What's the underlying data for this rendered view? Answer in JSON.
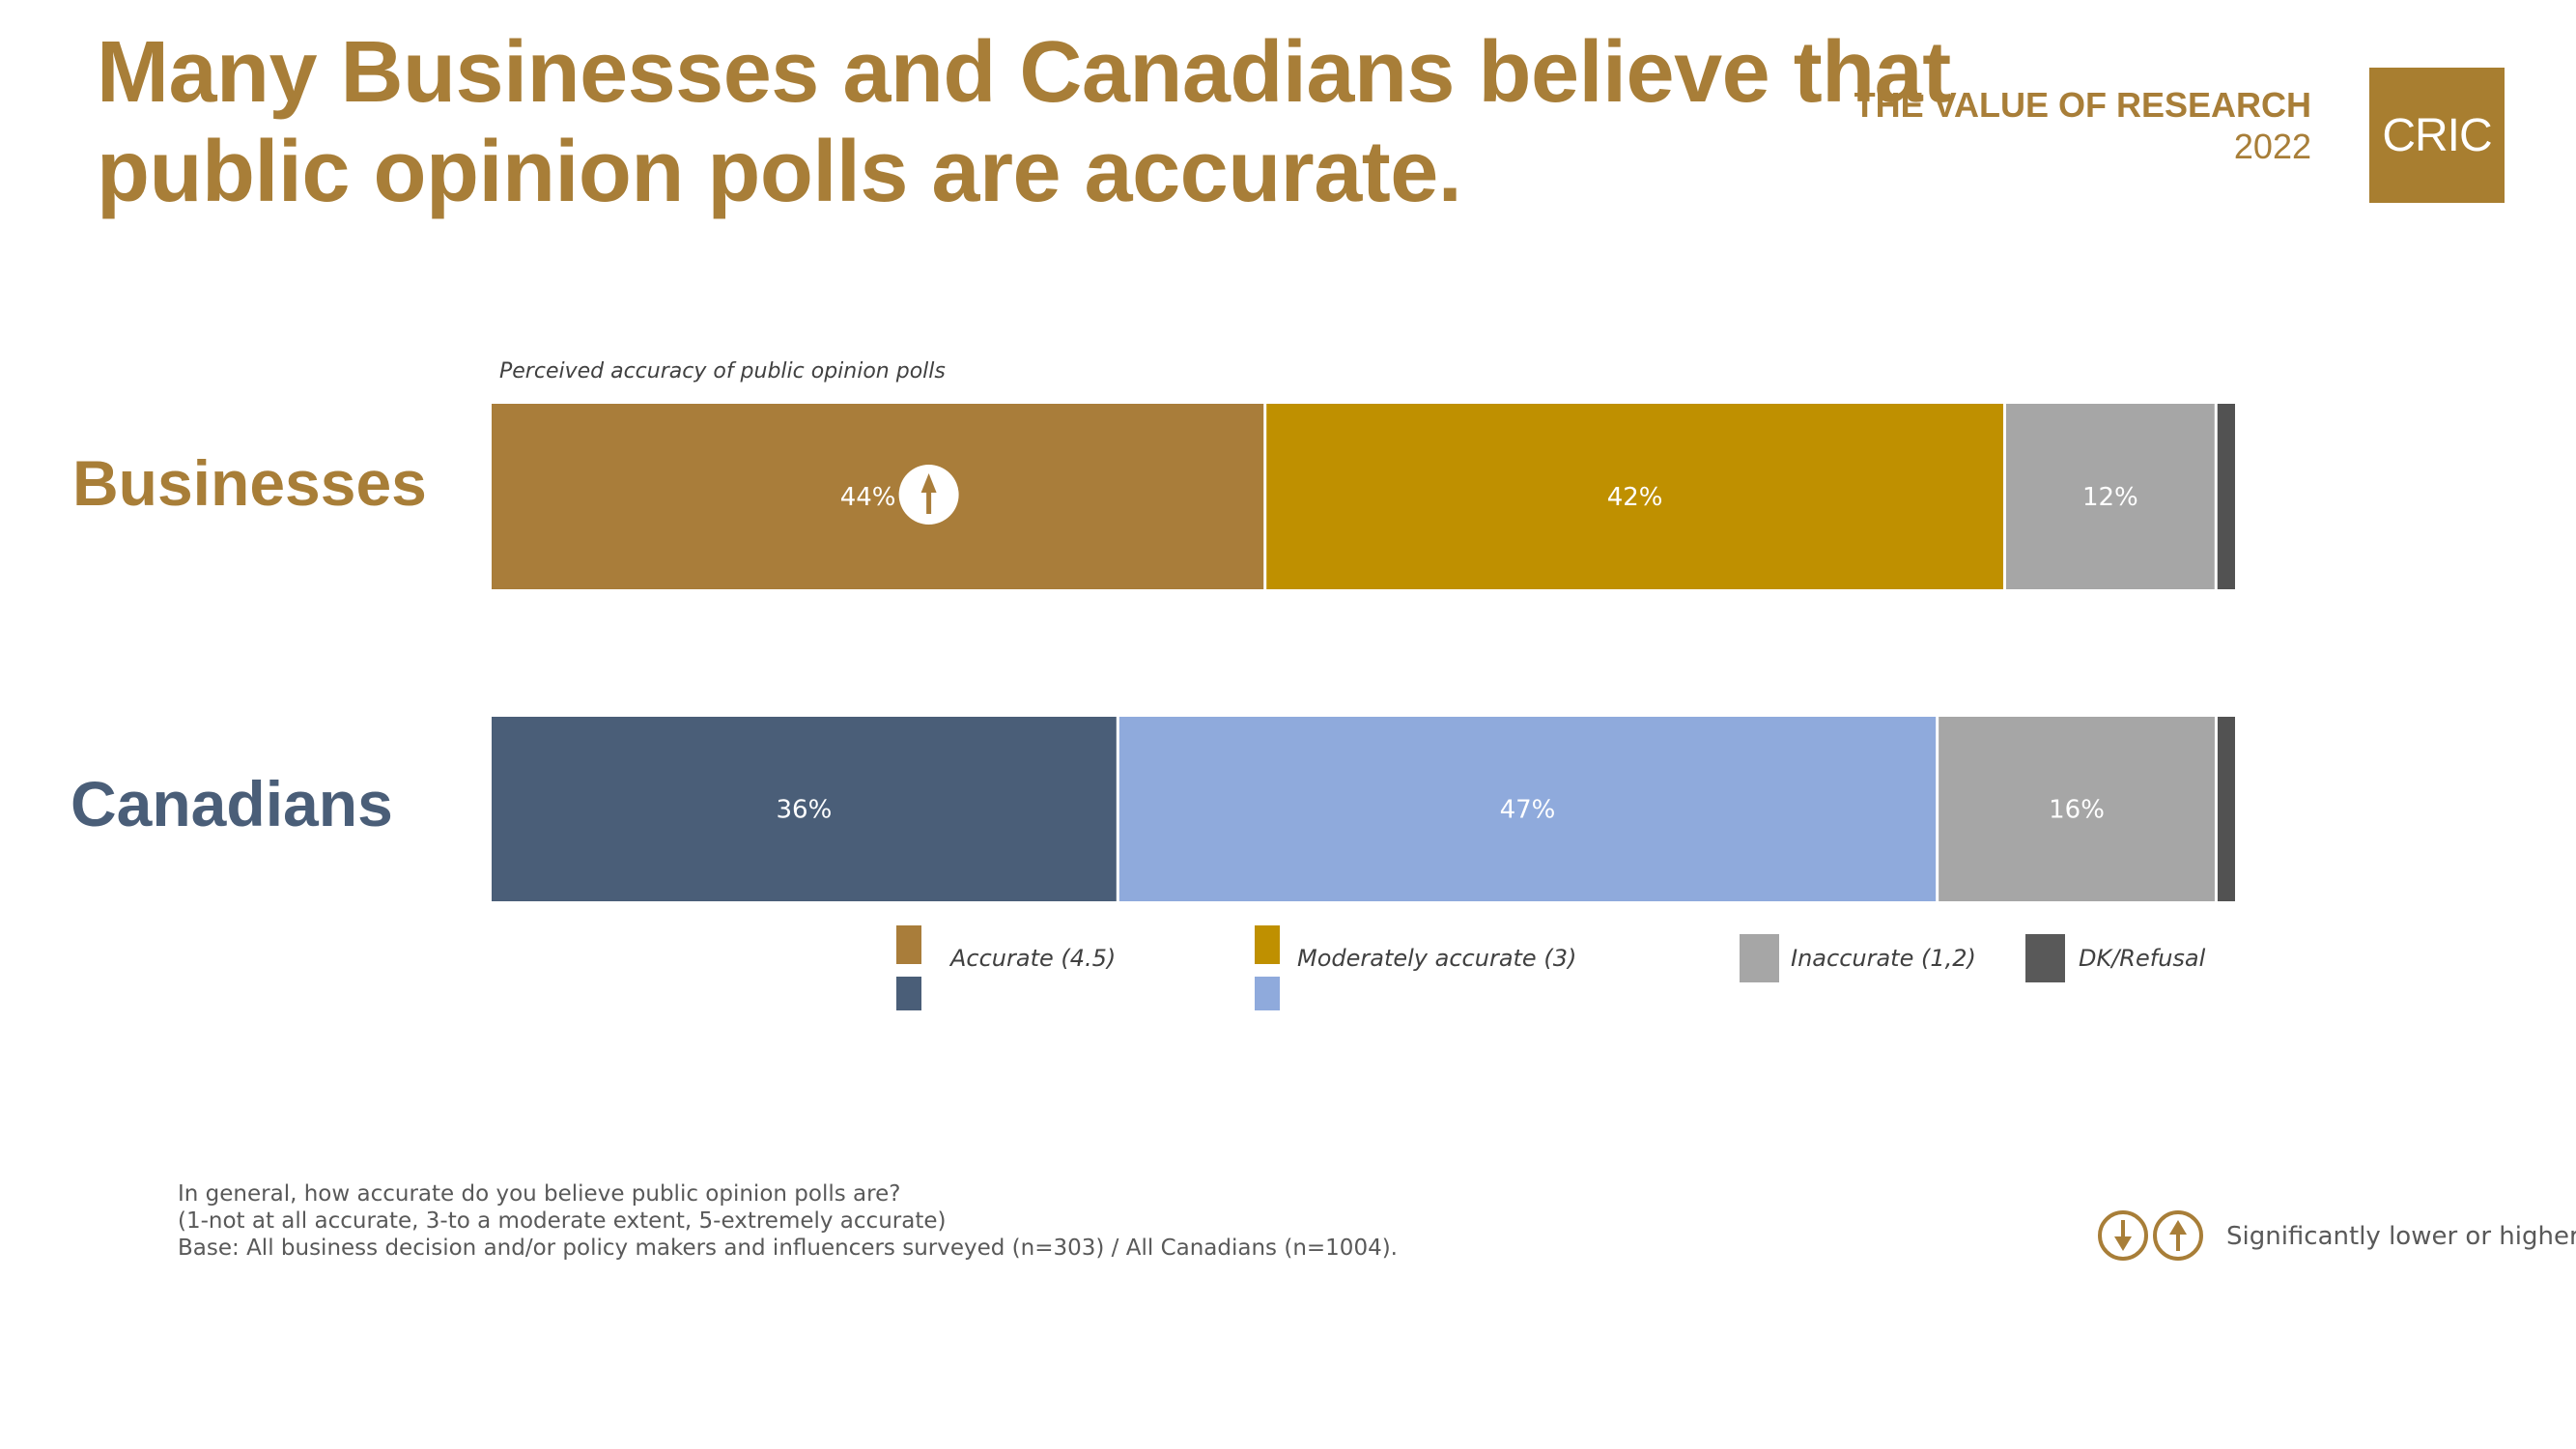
{
  "header": {
    "title_lines": [
      "Many Businesses and Canadians believe that",
      "public opinion polls are accurate."
    ],
    "brand_line1": "THE VALUE OF RESEARCH",
    "brand_line2": "2022",
    "logo_text": "CRIC"
  },
  "colors": {
    "brand_gold": "#A87E38",
    "businesses_label": "#A87E38",
    "canadians_label": "#4A5E78",
    "text_gray": "#595959"
  },
  "chart_data": {
    "type": "bar",
    "orientation": "horizontal-stacked-100",
    "title": "Perceived accuracy of public opinion polls",
    "categories": [
      "Businesses",
      "Canadians"
    ],
    "xlim": [
      0,
      100
    ],
    "grid": false,
    "legend_position": "bottom",
    "series": [
      {
        "name": "Accurate (4.5)",
        "values": [
          44,
          36
        ],
        "labels": [
          "44%",
          "36%"
        ],
        "colors": [
          "#A97D3A",
          "#4A5E78"
        ]
      },
      {
        "name": "Moderately accurate (3)",
        "values": [
          42,
          47
        ],
        "labels": [
          "42%",
          "47%"
        ],
        "colors": [
          "#BF9000",
          "#8FAADC"
        ]
      },
      {
        "name": "Inaccurate (1,2)",
        "values": [
          12,
          16
        ],
        "labels": [
          "12%",
          "16%"
        ],
        "colors": [
          "#A6A6A6",
          "#A6A6A6"
        ]
      },
      {
        "name": "DK/Refusal",
        "values": [
          1,
          1
        ],
        "labels": [
          "",
          ""
        ],
        "colors": [
          "#525252",
          "#525252"
        ]
      }
    ],
    "annotations": [
      {
        "category": "Businesses",
        "series": "Accurate (4.5)",
        "marker": "significantly-higher-arrow"
      }
    ]
  },
  "legend": [
    {
      "label": "Accurate (4.5)",
      "colors": [
        "#A97D3A",
        "#4A5E78"
      ]
    },
    {
      "label": "Moderately accurate (3)",
      "colors": [
        "#BF9000",
        "#8FAADC"
      ]
    },
    {
      "label": "Inaccurate (1,2)",
      "colors": [
        "#A6A6A6"
      ]
    },
    {
      "label": "DK/Refusal",
      "colors": [
        "#595959"
      ]
    }
  ],
  "footer": {
    "question": "In general, how accurate do you believe public opinion polls are?",
    "scale": "(1-not at all accurate, 3-to a moderate extent, 5-extremely accurate)",
    "base": "Base: All business decision and/or policy makers and influencers surveyed (n=303) / All Canadians (n=1004)."
  },
  "significance_legend": {
    "icons": [
      "arrow-down-circle",
      "arrow-up-circle"
    ],
    "text": "Significantly lower or higher"
  }
}
